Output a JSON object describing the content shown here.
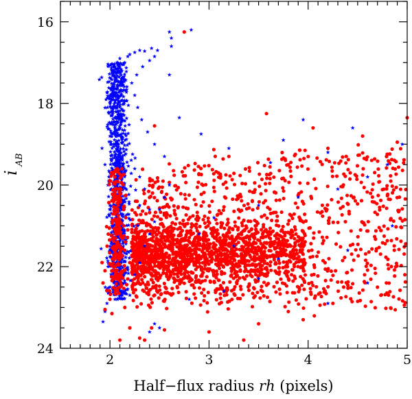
{
  "chart_data": {
    "type": "scatter",
    "xlabel_parts": [
      "Half−flux radius ",
      "rh",
      " (pixels)"
    ],
    "ylabel_main": "i",
    "ylabel_sub": "AB",
    "xlim": [
      1.5,
      5.0
    ],
    "ylim": [
      24.0,
      15.5
    ],
    "y_inverted": true,
    "x_ticks": [
      2,
      3,
      4,
      5
    ],
    "x_tick_labels": [
      "2",
      "3",
      "4",
      "5"
    ],
    "y_ticks": [
      16,
      18,
      20,
      22,
      24
    ],
    "y_tick_labels": [
      "16",
      "18",
      "20",
      "22",
      "24"
    ],
    "grid": false,
    "series": [
      {
        "marker": "star",
        "color": "#0000ff",
        "points": [
          [
            2.05,
            17.1
          ],
          [
            2.07,
            17.0
          ],
          [
            2.1,
            16.9
          ],
          [
            2.12,
            17.2
          ],
          [
            2.15,
            17.0
          ],
          [
            2.18,
            16.85
          ],
          [
            2.2,
            16.8
          ],
          [
            2.25,
            16.75
          ],
          [
            2.3,
            16.7
          ],
          [
            2.35,
            16.72
          ],
          [
            2.42,
            16.65
          ],
          [
            2.48,
            16.7
          ],
          [
            2.6,
            16.25
          ],
          [
            2.62,
            16.4
          ],
          [
            2.82,
            16.2
          ],
          [
            2.6,
            17.3
          ],
          [
            2.7,
            18.35
          ],
          [
            2.92,
            18.75
          ],
          [
            3.2,
            19.1
          ],
          [
            3.62,
            19.45
          ],
          [
            3.75,
            18.9
          ],
          [
            3.95,
            18.4
          ],
          [
            4.2,
            19.2
          ],
          [
            4.45,
            18.6
          ],
          [
            4.95,
            19.0
          ],
          [
            4.8,
            19.5
          ],
          [
            4.6,
            19.8
          ],
          [
            4.3,
            20.1
          ],
          [
            3.9,
            20.3
          ],
          [
            3.5,
            20.5
          ],
          [
            1.92,
            19.1
          ],
          [
            1.95,
            19.5
          ],
          [
            1.98,
            20.0
          ],
          [
            2.0,
            20.5
          ],
          [
            2.02,
            21.0
          ],
          [
            2.0,
            21.5
          ],
          [
            1.98,
            22.0
          ],
          [
            2.0,
            22.5
          ],
          [
            1.97,
            22.9
          ],
          [
            1.95,
            23.1
          ],
          [
            1.93,
            23.35
          ],
          [
            2.05,
            22.8
          ],
          [
            2.1,
            22.6
          ],
          [
            2.15,
            22.4
          ],
          [
            2.2,
            22.7
          ],
          [
            2.25,
            22.2
          ],
          [
            2.3,
            21.9
          ],
          [
            2.35,
            21.5
          ],
          [
            2.4,
            21.2
          ],
          [
            2.45,
            20.9
          ],
          [
            2.5,
            20.6
          ],
          [
            2.55,
            20.3
          ],
          [
            2.6,
            20.0
          ],
          [
            2.35,
            20.1
          ],
          [
            2.3,
            19.8
          ],
          [
            2.25,
            19.6
          ],
          [
            2.3,
            20.5
          ],
          [
            2.4,
            20.6
          ],
          [
            2.28,
            21.0
          ],
          [
            2.45,
            23.4
          ],
          [
            2.5,
            23.5
          ],
          [
            2.4,
            23.6
          ],
          [
            2.8,
            22.8
          ],
          [
            3.15,
            22.6
          ],
          [
            3.5,
            22.3
          ],
          [
            3.25,
            21.5
          ],
          [
            2.9,
            21.2
          ],
          [
            3.05,
            20.8
          ],
          [
            3.7,
            21.8
          ],
          [
            4.4,
            21.6
          ],
          [
            4.6,
            22.4
          ],
          [
            4.2,
            22.9
          ],
          [
            4.85,
            21.0
          ],
          [
            2.55,
            19.3
          ],
          [
            2.45,
            19.0
          ],
          [
            2.38,
            18.7
          ],
          [
            2.32,
            18.4
          ],
          [
            2.28,
            18.1
          ],
          [
            2.25,
            17.8
          ],
          [
            2.22,
            17.5
          ],
          [
            2.27,
            17.3
          ],
          [
            2.33,
            17.1
          ],
          [
            2.4,
            16.95
          ],
          [
            2.45,
            16.85
          ],
          [
            2.62,
            16.6
          ]
        ],
        "band": {
          "y_range": [
            17.0,
            22.8
          ],
          "x_center": 2.08,
          "x_center_slope": 0.006,
          "x_spread": 0.085,
          "count": 950
        }
      },
      {
        "marker": "circle",
        "color": "#ff0000",
        "points": [
          [
            2.75,
            16.25
          ],
          [
            3.58,
            18.25
          ],
          [
            2.45,
            18.55
          ],
          [
            4.05,
            18.6
          ],
          [
            4.2,
            19.1
          ],
          [
            4.55,
            18.8
          ],
          [
            4.9,
            18.95
          ],
          [
            5.0,
            18.35
          ],
          [
            3.2,
            19.3
          ],
          [
            3.8,
            19.5
          ],
          [
            2.15,
            23.0
          ],
          [
            2.2,
            23.5
          ],
          [
            2.3,
            23.75
          ],
          [
            2.35,
            23.8
          ],
          [
            2.1,
            23.8
          ],
          [
            2.42,
            23.5
          ],
          [
            2.55,
            23.55
          ],
          [
            3.0,
            23.6
          ],
          [
            3.35,
            23.8
          ],
          [
            3.5,
            23.4
          ],
          [
            3.8,
            23.1
          ],
          [
            3.95,
            23.3
          ],
          [
            4.25,
            22.9
          ],
          [
            4.5,
            22.85
          ],
          [
            1.92,
            21.9
          ],
          [
            1.95,
            22.1
          ],
          [
            1.93,
            22.4
          ],
          [
            2.0,
            22.8
          ],
          [
            1.95,
            23.05
          ],
          [
            2.02,
            23.15
          ],
          [
            2.05,
            19.8
          ],
          [
            2.08,
            20.3
          ],
          [
            2.1,
            20.9
          ],
          [
            2.12,
            21.3
          ],
          [
            2.15,
            21.6
          ],
          [
            2.06,
            21.2
          ],
          [
            2.14,
            20.6
          ],
          [
            2.1,
            21.8
          ],
          [
            2.05,
            22.0
          ],
          [
            2.18,
            22.3
          ],
          [
            2.1,
            22.5
          ],
          [
            2.2,
            21.9
          ],
          [
            2.12,
            19.6
          ],
          [
            2.08,
            20.1
          ],
          [
            2.16,
            20.8
          ],
          [
            2.04,
            21.5
          ],
          [
            2.22,
            21.4
          ],
          [
            2.14,
            22.1
          ],
          [
            2.18,
            21.1
          ],
          [
            2.07,
            21.7
          ]
        ],
        "blob": {
          "x_range": [
            2.2,
            5.0
          ],
          "y_range": [
            19.0,
            23.0
          ],
          "count": 2300
        }
      }
    ]
  }
}
